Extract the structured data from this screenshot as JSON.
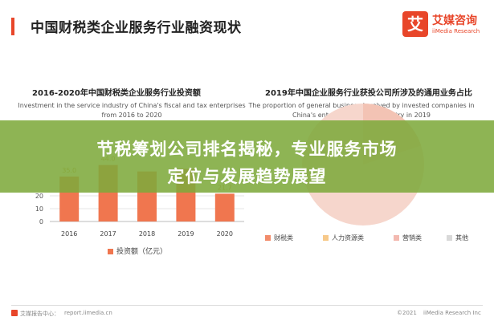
{
  "header": {
    "title": "中国财税类企业服务行业融资现状",
    "logo": {
      "mark": "艾",
      "name_cn": "艾媒咨询",
      "name_en": "iiMedia Research"
    }
  },
  "colors": {
    "accent": "#e8462a",
    "bar": "#f0764f",
    "banner": "#7eaa3c"
  },
  "chart_data": [
    {
      "type": "bar",
      "title": "2016-2020年中国财税类企业服务行业投资额",
      "subtitle": "Investment in the service industry of China's fiscal and tax enterprises from 2016 to 2020",
      "categories": [
        "2016",
        "2017",
        "2018",
        "2019",
        "2020"
      ],
      "series": [
        {
          "name": "投资额（亿元）",
          "values": [
            35.0,
            44.0,
            39.0,
            41.0,
            21.7
          ]
        }
      ],
      "data_labels": [
        "35.0",
        "44.0",
        "",
        "",
        "21.7"
      ],
      "y_ticks": [
        "0",
        "10",
        "20"
      ],
      "ylim": [
        0,
        50
      ],
      "legend": "bottom"
    },
    {
      "type": "pie",
      "title": "2019年中国企业服务行业获投公司所涉及的通用业务占比",
      "subtitle": "The proportion of general business involved by invested companies in China's enterprise service industry in 2019",
      "categories": [
        "财税类",
        "人力资源类",
        "营销类",
        "其他"
      ],
      "colors": [
        "#f28c6b",
        "#f7c98a",
        "#f3b9b0",
        "#d9d9d9"
      ],
      "legend": "bottom"
    }
  ],
  "banner": {
    "line1": "节税筹划公司排名揭秘，专业服务市场",
    "line2": "定位与发展趋势展望"
  },
  "footer": {
    "source": "艾媒报告中心：",
    "url": "report.iimedia.cn",
    "copyright": "©2021",
    "org": "iiMedia Research Inc"
  }
}
